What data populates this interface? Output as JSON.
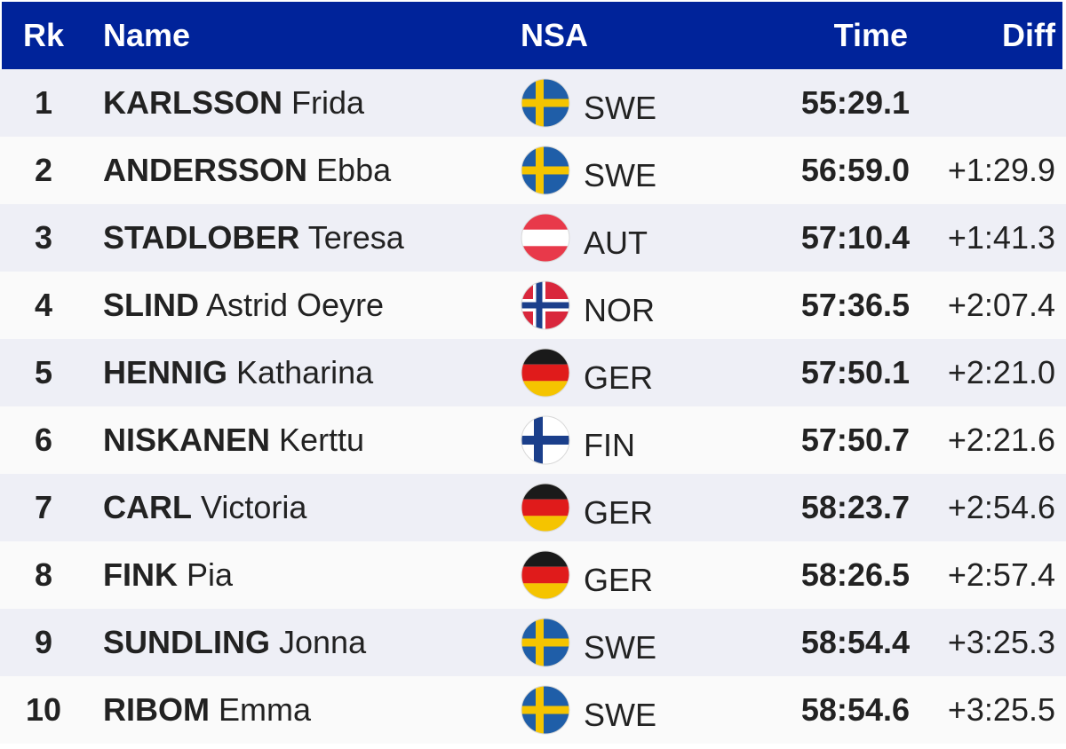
{
  "header": {
    "rank": "Rk",
    "name": "Name",
    "nsa": "NSA",
    "time": "Time",
    "diff": "Diff"
  },
  "colors": {
    "header_bg": "#00239a",
    "row_odd": "#eeeff6",
    "row_even": "#fafafa"
  },
  "rows": [
    {
      "rank": "1",
      "last": "KARLSSON",
      "first": "Frida",
      "flag": "swe-flag-icon",
      "nsa": "SWE",
      "time": "55:29.1",
      "diff": ""
    },
    {
      "rank": "2",
      "last": "ANDERSSON",
      "first": "Ebba",
      "flag": "swe-flag-icon",
      "nsa": "SWE",
      "time": "56:59.0",
      "diff": "+1:29.9"
    },
    {
      "rank": "3",
      "last": "STADLOBER",
      "first": "Teresa",
      "flag": "aut-flag-icon",
      "nsa": "AUT",
      "time": "57:10.4",
      "diff": "+1:41.3"
    },
    {
      "rank": "4",
      "last": "SLIND",
      "first": "Astrid Oeyre",
      "flag": "nor-flag-icon",
      "nsa": "NOR",
      "time": "57:36.5",
      "diff": "+2:07.4"
    },
    {
      "rank": "5",
      "last": "HENNIG",
      "first": "Katharina",
      "flag": "ger-flag-icon",
      "nsa": "GER",
      "time": "57:50.1",
      "diff": "+2:21.0"
    },
    {
      "rank": "6",
      "last": "NISKANEN",
      "first": "Kerttu",
      "flag": "fin-flag-icon",
      "nsa": "FIN",
      "time": "57:50.7",
      "diff": "+2:21.6"
    },
    {
      "rank": "7",
      "last": "CARL",
      "first": "Victoria",
      "flag": "ger-flag-icon",
      "nsa": "GER",
      "time": "58:23.7",
      "diff": "+2:54.6"
    },
    {
      "rank": "8",
      "last": "FINK",
      "first": "Pia",
      "flag": "ger-flag-icon",
      "nsa": "GER",
      "time": "58:26.5",
      "diff": "+2:57.4"
    },
    {
      "rank": "9",
      "last": "SUNDLING",
      "first": "Jonna",
      "flag": "swe-flag-icon",
      "nsa": "SWE",
      "time": "58:54.4",
      "diff": "+3:25.3"
    },
    {
      "rank": "10",
      "last": "RIBOM",
      "first": "Emma",
      "flag": "swe-flag-icon",
      "nsa": "SWE",
      "time": "58:54.6",
      "diff": "+3:25.5"
    }
  ]
}
